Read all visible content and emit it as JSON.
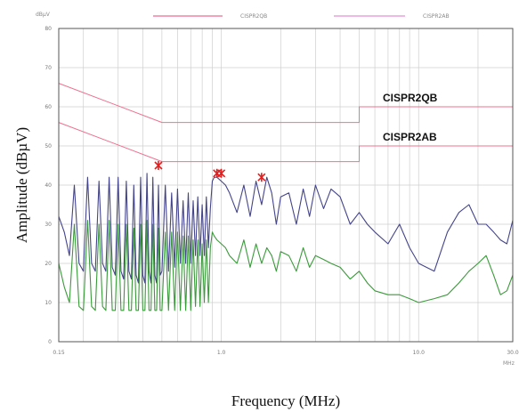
{
  "chart_data": {
    "type": "line",
    "xlabel": "Frequency (MHz)",
    "ylabel": "Amplitude (dBµV)",
    "y_unit_label": "dBµV",
    "x_unit_label": "MHz",
    "x_scale": "log",
    "xlim": [
      0.15,
      30
    ],
    "ylim": [
      0,
      80
    ],
    "grid": true,
    "legend_position": "top",
    "legend": [
      {
        "name": "CISPR2QB",
        "color": "#e8457a"
      },
      {
        "name": "CISPR2AB",
        "color": "#e070c8"
      }
    ],
    "x_tick_labels": [
      {
        "value": 0.15,
        "label": "0.15"
      },
      {
        "value": 1,
        "label": "1.0"
      },
      {
        "value": 10,
        "label": "10.0"
      },
      {
        "value": 30,
        "label": "30.0"
      }
    ],
    "y_ticks": [
      0,
      10,
      20,
      30,
      40,
      50,
      60,
      70,
      80
    ],
    "limit_labels": [
      {
        "text": "CISPR2QB",
        "y": 60
      },
      {
        "text": "CISPR2AB",
        "y": 50
      }
    ],
    "series": [
      {
        "name": "CISPR2QB",
        "color": "#f07090",
        "x": [
          0.15,
          0.5,
          0.5,
          5,
          5,
          30
        ],
        "y": [
          66,
          56,
          56,
          56,
          60,
          60
        ]
      },
      {
        "name": "CISPR2AB",
        "color": "#f07090",
        "x": [
          0.15,
          0.5,
          0.5,
          5,
          5,
          30
        ],
        "y": [
          56,
          46,
          46,
          46,
          50,
          50
        ]
      },
      {
        "color": "#44448a",
        "x": [
          0.15,
          0.16,
          0.17,
          0.18,
          0.19,
          0.2,
          0.21,
          0.22,
          0.23,
          0.24,
          0.25,
          0.26,
          0.27,
          0.28,
          0.29,
          0.3,
          0.31,
          0.32,
          0.33,
          0.34,
          0.35,
          0.36,
          0.37,
          0.38,
          0.39,
          0.4,
          0.41,
          0.42,
          0.43,
          0.44,
          0.45,
          0.46,
          0.47,
          0.48,
          0.49,
          0.5,
          0.52,
          0.54,
          0.56,
          0.58,
          0.6,
          0.62,
          0.64,
          0.66,
          0.68,
          0.7,
          0.72,
          0.74,
          0.76,
          0.78,
          0.8,
          0.82,
          0.84,
          0.86,
          0.88,
          0.9,
          0.92,
          0.95,
          1.0,
          1.05,
          1.1,
          1.2,
          1.3,
          1.4,
          1.5,
          1.6,
          1.7,
          1.8,
          1.9,
          2.0,
          2.2,
          2.4,
          2.6,
          2.8,
          3.0,
          3.3,
          3.6,
          4.0,
          4.5,
          5.0,
          5.5,
          6.0,
          7.0,
          8.0,
          9.0,
          10.0,
          12.0,
          14.0,
          16.0,
          18.0,
          20.0,
          22.0,
          24.0,
          26.0,
          28.0,
          30.0
        ],
        "y": [
          32,
          28,
          22,
          40,
          20,
          18,
          42,
          20,
          18,
          41,
          20,
          18,
          42,
          19,
          17,
          42,
          18,
          16,
          41,
          18,
          16,
          40,
          17,
          15,
          42,
          17,
          15,
          43,
          18,
          15,
          42,
          17,
          15,
          40,
          17,
          18,
          40,
          18,
          38,
          19,
          39,
          20,
          36,
          20,
          38,
          20,
          36,
          22,
          37,
          22,
          35,
          22,
          37,
          24,
          34,
          41,
          42,
          42,
          41,
          40,
          38,
          33,
          40,
          32,
          41,
          35,
          42,
          38,
          30,
          37,
          38,
          30,
          39,
          32,
          40,
          34,
          39,
          37,
          30,
          33,
          30,
          28,
          25,
          30,
          24,
          20,
          18,
          28,
          33,
          35,
          30,
          30,
          28,
          26,
          25,
          31
        ]
      },
      {
        "color": "#3a9a3a",
        "x": [
          0.15,
          0.16,
          0.17,
          0.18,
          0.19,
          0.2,
          0.21,
          0.22,
          0.23,
          0.24,
          0.25,
          0.26,
          0.27,
          0.28,
          0.29,
          0.3,
          0.31,
          0.32,
          0.33,
          0.34,
          0.35,
          0.36,
          0.37,
          0.38,
          0.39,
          0.4,
          0.41,
          0.42,
          0.43,
          0.44,
          0.45,
          0.46,
          0.47,
          0.48,
          0.49,
          0.5,
          0.52,
          0.54,
          0.56,
          0.58,
          0.6,
          0.62,
          0.64,
          0.66,
          0.68,
          0.7,
          0.72,
          0.74,
          0.76,
          0.78,
          0.8,
          0.82,
          0.84,
          0.86,
          0.88,
          0.9,
          0.92,
          0.95,
          1.0,
          1.05,
          1.1,
          1.2,
          1.3,
          1.4,
          1.5,
          1.6,
          1.7,
          1.8,
          1.9,
          2.0,
          2.2,
          2.4,
          2.6,
          2.8,
          3.0,
          3.3,
          3.6,
          4.0,
          4.5,
          5.0,
          5.5,
          6.0,
          7.0,
          8.0,
          9.0,
          10.0,
          12.0,
          14.0,
          16.0,
          18.0,
          20.0,
          22.0,
          24.0,
          26.0,
          28.0,
          30.0
        ],
        "y": [
          20,
          14,
          10,
          30,
          9,
          8,
          31,
          9,
          8,
          30,
          9,
          8,
          31,
          8,
          8,
          30,
          8,
          8,
          30,
          8,
          8,
          29,
          8,
          8,
          30,
          8,
          8,
          31,
          8,
          8,
          30,
          8,
          8,
          29,
          8,
          8,
          28,
          8,
          28,
          8,
          28,
          8,
          27,
          8,
          27,
          8,
          26,
          9,
          26,
          9,
          25,
          10,
          26,
          10,
          24,
          28,
          27,
          26,
          25,
          24,
          22,
          20,
          26,
          19,
          25,
          20,
          24,
          22,
          18,
          23,
          22,
          18,
          24,
          19,
          22,
          21,
          20,
          19,
          16,
          18,
          15,
          13,
          12,
          12,
          11,
          10,
          11,
          12,
          15,
          18,
          20,
          22,
          17,
          12,
          13,
          17
        ]
      }
    ],
    "markers": [
      {
        "x": 0.48,
        "y": 45
      },
      {
        "x": 0.95,
        "y": 43
      },
      {
        "x": 1.0,
        "y": 43
      },
      {
        "x": 1.6,
        "y": 42
      }
    ]
  }
}
